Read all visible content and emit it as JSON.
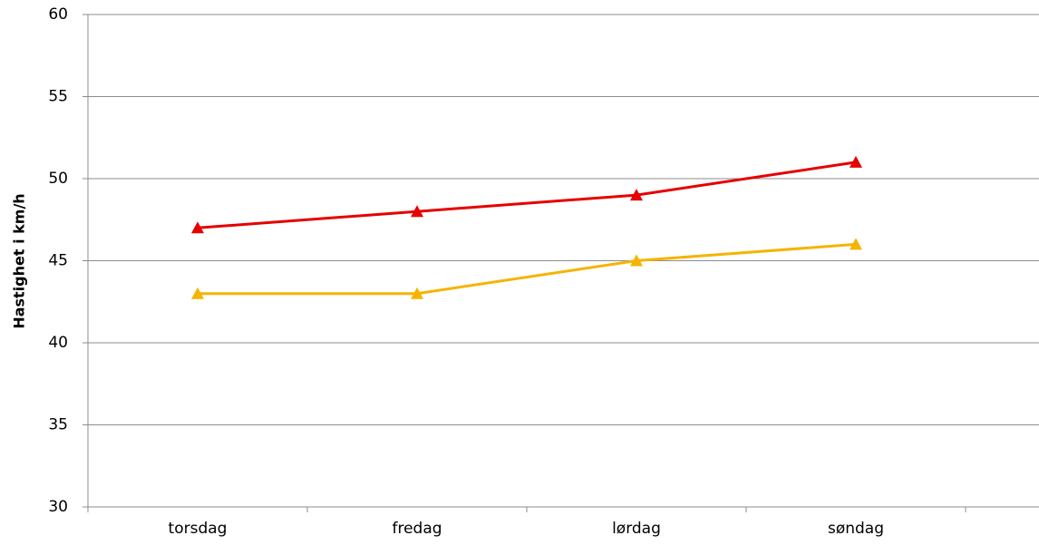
{
  "chart_data": {
    "type": "line",
    "y_label": "Hastighet i  km/h",
    "categories": [
      "torsdag",
      "fredag",
      "lørdag",
      "søndag"
    ],
    "series": [
      {
        "color": "#e60000",
        "values": [
          47,
          48,
          49,
          51
        ]
      },
      {
        "color": "#f5b400",
        "values": [
          43,
          43,
          45,
          46
        ]
      }
    ],
    "ylim": [
      30,
      60
    ],
    "yticks": [
      30,
      35,
      40,
      45,
      50,
      55,
      60
    ],
    "grid": true,
    "marker": "triangle"
  }
}
